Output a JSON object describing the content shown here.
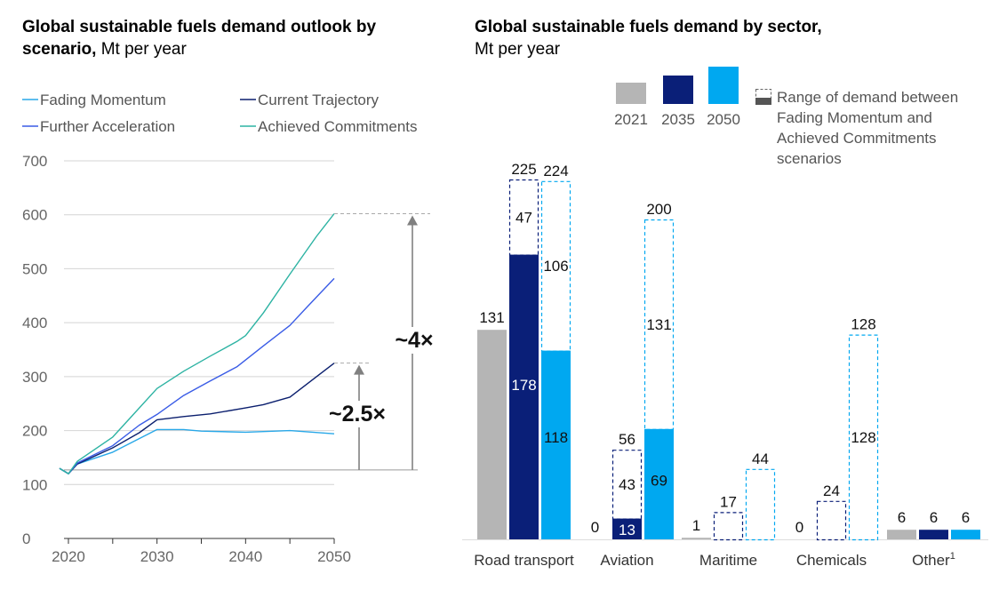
{
  "left_title": {
    "bold": "Global sustainable fuels demand outlook by scenario,",
    "rest": " Mt per year"
  },
  "right_title": {
    "bold": "Global sustainable fuels demand by sector,",
    "rest": "Mt per year"
  },
  "colors": {
    "fading": "#29A8E8",
    "current": "#0B1F6E",
    "further": "#3A5CE6",
    "achieved": "#2DB3A3",
    "y2021": "#B5B5B5",
    "y2035": "#0A1F78",
    "y2050": "#00A8F0",
    "grid": "#D4D4D4",
    "arrow": "#808080"
  },
  "chart_data": [
    {
      "type": "line",
      "title": "Global sustainable fuels demand outlook by scenario, Mt per year",
      "xlabel": "",
      "ylabel": "",
      "xlim": [
        2019.5,
        2050
      ],
      "ylim": [
        0,
        700
      ],
      "x_ticks": [
        "2020",
        "2030",
        "2040",
        "2050"
      ],
      "y_ticks": [
        "0",
        "100",
        "200",
        "300",
        "400",
        "500",
        "600",
        "700"
      ],
      "baseline_value": 127,
      "annotations": [
        "~4×",
        "~2.5×"
      ],
      "legend": [
        "Fading Momentum",
        "Current Trajectory",
        "Further Acceleration",
        "Achieved Commitments"
      ],
      "series": [
        {
          "name": "Fading Momentum",
          "color_key": "fading",
          "x": [
            2019,
            2020,
            2021,
            2025,
            2030,
            2033,
            2035,
            2040,
            2045,
            2050
          ],
          "values": [
            130,
            120,
            138,
            160,
            202,
            202,
            199,
            197,
            200,
            194
          ]
        },
        {
          "name": "Current Trajectory",
          "color_key": "current",
          "x": [
            2019,
            2020,
            2021,
            2025,
            2028,
            2030,
            2033,
            2036,
            2040,
            2042,
            2045,
            2048,
            2050
          ],
          "values": [
            130,
            120,
            138,
            168,
            196,
            220,
            226,
            231,
            242,
            248,
            262,
            300,
            325
          ]
        },
        {
          "name": "Further Acceleration",
          "color_key": "further",
          "x": [
            2019,
            2020,
            2021,
            2025,
            2028,
            2030,
            2033,
            2036,
            2039,
            2042,
            2045,
            2047,
            2050
          ],
          "values": [
            130,
            120,
            140,
            172,
            210,
            230,
            265,
            292,
            318,
            357,
            395,
            430,
            482
          ]
        },
        {
          "name": "Achieved Commitments",
          "color_key": "achieved",
          "x": [
            2019,
            2020,
            2021,
            2025,
            2027,
            2030,
            2033,
            2036,
            2039,
            2040,
            2042,
            2045,
            2048,
            2050
          ],
          "values": [
            130,
            120,
            143,
            188,
            224,
            278,
            310,
            338,
            365,
            376,
            418,
            490,
            560,
            602
          ]
        }
      ]
    },
    {
      "type": "bar",
      "title": "Global sustainable fuels demand by sector, Mt per year",
      "categories": [
        "Road transport",
        "Aviation",
        "Maritime",
        "Chemicals",
        "Other"
      ],
      "category_superscripts": [
        "",
        "",
        "",
        "",
        "1"
      ],
      "legend_years": [
        "2021",
        "2035",
        "2050"
      ],
      "legend_range_label": "Range of demand between Fading Momentum and Achieved Commitments scenarios",
      "ylim": [
        0,
        240
      ],
      "series": [
        {
          "name": "2021",
          "solid": [
            131,
            0,
            1,
            0,
            6
          ],
          "range": [
            0,
            0,
            0,
            0,
            0
          ],
          "solid_labels": [
            "131",
            "0",
            "1",
            "0",
            "6"
          ],
          "range_labels": [
            "",
            "",
            "",
            "",
            ""
          ],
          "total_labels": [
            "",
            "",
            "",
            "",
            ""
          ]
        },
        {
          "name": "2035",
          "solid": [
            178,
            13,
            0,
            0,
            6
          ],
          "range": [
            47,
            43,
            17,
            24,
            0
          ],
          "solid_labels": [
            "178",
            "13",
            "",
            "",
            "6"
          ],
          "range_labels": [
            "47",
            "43",
            "",
            "",
            ""
          ],
          "total_labels": [
            "225",
            "56",
            "17",
            "24",
            ""
          ]
        },
        {
          "name": "2050",
          "solid": [
            118,
            69,
            0,
            0,
            6
          ],
          "range": [
            106,
            131,
            44,
            128,
            0
          ],
          "solid_labels": [
            "118",
            "69",
            "",
            "",
            "6"
          ],
          "range_labels": [
            "106",
            "131",
            "",
            "128",
            ""
          ],
          "total_labels": [
            "224",
            "200",
            "44",
            "128",
            ""
          ]
        }
      ]
    }
  ]
}
